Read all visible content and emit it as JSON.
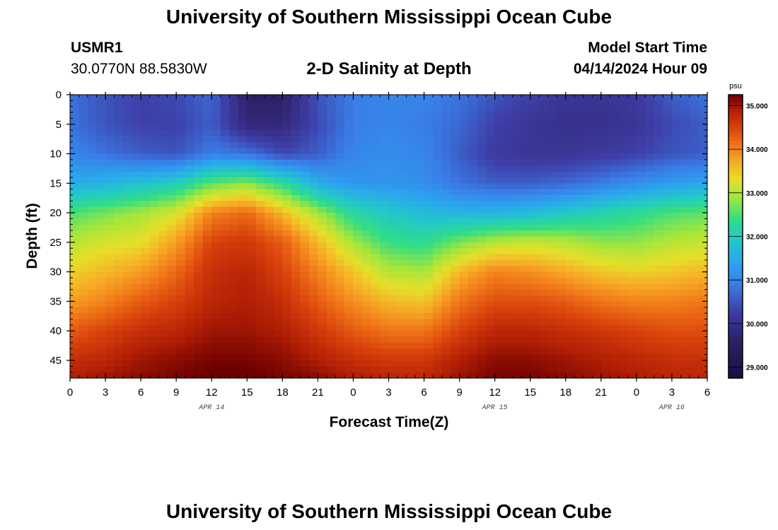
{
  "header": {
    "title": "University of Southern Mississippi Ocean Cube",
    "station_id": "USMR1",
    "station_coords": "30.0770N  88.5830W",
    "subtitle": "2-D Salinity at Depth",
    "model_start_label": "Model Start Time",
    "model_start_value": "04/14/2024 Hour 09"
  },
  "footer": {
    "title": "University of Southern Mississippi Ocean Cube"
  },
  "chart_data": {
    "type": "heatmap",
    "title": "2-D Salinity at Depth",
    "xlabel": "Forecast Time(Z)",
    "ylabel": "Depth (ft)",
    "x_hours": [
      0,
      3,
      6,
      9,
      12,
      15,
      18,
      21,
      24,
      27,
      30,
      33,
      36,
      39,
      42,
      45,
      48,
      51,
      54
    ],
    "x_tick_labels": [
      "0",
      "3",
      "6",
      "9",
      "12",
      "15",
      "18",
      "21",
      "0",
      "3",
      "6",
      "9",
      "12",
      "15",
      "18",
      "21",
      "0",
      "3",
      "6"
    ],
    "date_labels": [
      {
        "hour": 12,
        "text": "APR 14"
      },
      {
        "hour": 36,
        "text": "APR 15"
      },
      {
        "hour": 51,
        "text": "APR 16"
      }
    ],
    "xlim": [
      0,
      54
    ],
    "y_ticks": [
      0,
      5,
      10,
      15,
      20,
      25,
      30,
      35,
      40,
      45
    ],
    "ylim": [
      0,
      48
    ],
    "depths": [
      0,
      5,
      10,
      15,
      20,
      25,
      30,
      35,
      40,
      45,
      48
    ],
    "salinity_psu": [
      [
        30.8,
        30.5,
        30.3,
        30.4,
        30.7,
        29.6,
        29.6,
        30.5,
        30.9,
        31.0,
        31.0,
        30.8,
        30.5,
        30.3,
        30.1,
        30.1,
        30.2,
        30.6,
        30.8
      ],
      [
        30.8,
        30.5,
        30.3,
        30.3,
        30.6,
        29.8,
        29.8,
        30.4,
        30.9,
        31.0,
        30.9,
        30.7,
        30.3,
        30.1,
        30.0,
        30.0,
        30.1,
        30.4,
        30.6
      ],
      [
        31.0,
        30.8,
        30.6,
        30.5,
        30.9,
        30.8,
        30.4,
        30.6,
        31.0,
        31.1,
        31.0,
        30.6,
        30.2,
        30.1,
        30.1,
        30.2,
        30.3,
        30.5,
        30.6
      ],
      [
        31.5,
        31.6,
        31.8,
        32.0,
        32.6,
        32.8,
        32.3,
        31.5,
        31.2,
        31.2,
        31.1,
        30.8,
        30.6,
        30.6,
        30.7,
        30.9,
        31.1,
        31.3,
        31.4
      ],
      [
        32.5,
        32.7,
        32.9,
        33.2,
        34.0,
        34.2,
        33.6,
        32.9,
        32.2,
        31.9,
        31.7,
        31.6,
        31.6,
        31.7,
        31.9,
        32.1,
        32.3,
        32.5,
        32.6
      ],
      [
        33.0,
        33.2,
        33.3,
        33.8,
        34.5,
        34.6,
        34.3,
        33.6,
        32.9,
        32.4,
        32.3,
        32.7,
        33.0,
        33.1,
        33.0,
        32.8,
        32.8,
        33.0,
        33.1
      ],
      [
        33.4,
        33.6,
        33.8,
        34.2,
        34.7,
        34.8,
        34.5,
        34.0,
        33.5,
        33.0,
        32.9,
        33.6,
        34.0,
        33.9,
        33.7,
        33.5,
        33.4,
        33.5,
        33.6
      ],
      [
        33.8,
        34.0,
        34.3,
        34.5,
        34.8,
        34.9,
        34.7,
        34.3,
        33.9,
        33.6,
        33.5,
        34.1,
        34.4,
        34.4,
        34.3,
        34.1,
        34.0,
        34.0,
        34.1
      ],
      [
        34.3,
        34.5,
        34.7,
        34.8,
        35.0,
        35.0,
        34.9,
        34.6,
        34.3,
        34.1,
        34.1,
        34.5,
        34.8,
        34.8,
        34.7,
        34.6,
        34.5,
        34.4,
        34.4
      ],
      [
        34.7,
        34.8,
        35.0,
        35.1,
        35.2,
        35.2,
        35.1,
        34.9,
        34.7,
        34.6,
        34.6,
        34.9,
        35.1,
        35.1,
        35.0,
        34.9,
        34.8,
        34.7,
        34.7
      ],
      [
        34.9,
        35.0,
        35.1,
        35.2,
        35.3,
        35.3,
        35.2,
        35.1,
        34.9,
        34.8,
        34.8,
        35.0,
        35.2,
        35.2,
        35.1,
        35.0,
        34.9,
        34.8,
        34.8
      ]
    ],
    "colorbar": {
      "unit": "psu",
      "range": [
        28.75,
        35.25
      ],
      "ticks": [
        29.0,
        30.0,
        31.0,
        32.0,
        33.0,
        34.0,
        35.0
      ],
      "tick_labels": [
        "29.000",
        "30.000",
        "31.000",
        "32.000",
        "33.000",
        "34.000",
        "35.000"
      ],
      "stops": [
        {
          "value": 28.75,
          "color": "#1d0f3d"
        },
        {
          "value": 29.6,
          "color": "#2e1f66"
        },
        {
          "value": 30.3,
          "color": "#3e3fa8"
        },
        {
          "value": 30.9,
          "color": "#3a7de8"
        },
        {
          "value": 31.4,
          "color": "#2aa6ee"
        },
        {
          "value": 31.9,
          "color": "#22c8c8"
        },
        {
          "value": 32.4,
          "color": "#33dd84"
        },
        {
          "value": 32.9,
          "color": "#a6e63a"
        },
        {
          "value": 33.3,
          "color": "#e6df2a"
        },
        {
          "value": 33.7,
          "color": "#f7ab26"
        },
        {
          "value": 34.1,
          "color": "#f07518"
        },
        {
          "value": 34.5,
          "color": "#d8410c"
        },
        {
          "value": 34.9,
          "color": "#b01e05"
        },
        {
          "value": 35.25,
          "color": "#6e0000"
        }
      ]
    },
    "grid": false
  }
}
